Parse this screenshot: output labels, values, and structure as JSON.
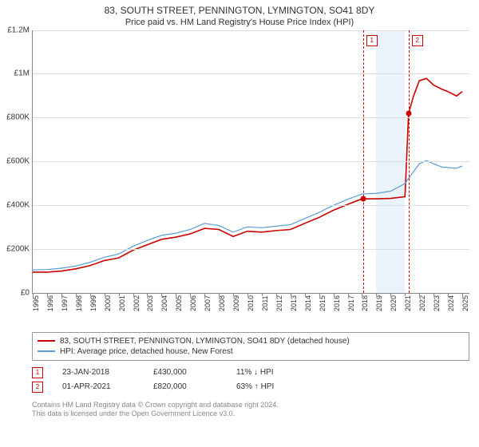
{
  "title_line1": "83, SOUTH STREET, PENNINGTON, LYMINGTON, SO41 8DY",
  "title_line2": "Price paid vs. HM Land Registry's House Price Index (HPI)",
  "chart": {
    "type": "line",
    "background_color": "#ffffff",
    "grid_color": "#dddddd",
    "axis_color": "#888888",
    "xlim": [
      1995,
      2025.5
    ],
    "ylim": [
      0,
      1200000
    ],
    "ytick_step": 200000,
    "yticks": [
      "£0",
      "£200K",
      "£400K",
      "£600K",
      "£800K",
      "£1M",
      "£1.2M"
    ],
    "xticks": [
      1995,
      1996,
      1997,
      1998,
      1999,
      2000,
      2001,
      2002,
      2003,
      2004,
      2005,
      2006,
      2007,
      2008,
      2009,
      2010,
      2011,
      2012,
      2013,
      2014,
      2015,
      2016,
      2017,
      2018,
      2019,
      2020,
      2021,
      2022,
      2023,
      2024,
      2025
    ],
    "shade_band": {
      "from": 2019.0,
      "to": 2021.0,
      "color": "#eaf2fb"
    },
    "series": [
      {
        "id": "property",
        "label": "83, SOUTH STREET, PENNINGTON, LYMINGTON, SO41 8DY (detached house)",
        "color": "#cc0000",
        "line_width": 1.6,
        "data": [
          [
            1995,
            95000
          ],
          [
            1996,
            95000
          ],
          [
            1997,
            100000
          ],
          [
            1998,
            110000
          ],
          [
            1999,
            125000
          ],
          [
            2000,
            148000
          ],
          [
            2001,
            160000
          ],
          [
            2002,
            195000
          ],
          [
            2003,
            220000
          ],
          [
            2004,
            245000
          ],
          [
            2005,
            255000
          ],
          [
            2006,
            270000
          ],
          [
            2007,
            295000
          ],
          [
            2008,
            290000
          ],
          [
            2009,
            258000
          ],
          [
            2010,
            282000
          ],
          [
            2011,
            278000
          ],
          [
            2012,
            285000
          ],
          [
            2013,
            290000
          ],
          [
            2014,
            318000
          ],
          [
            2015,
            345000
          ],
          [
            2016,
            378000
          ],
          [
            2017,
            405000
          ],
          [
            2018,
            430000
          ],
          [
            2019,
            430000
          ],
          [
            2020,
            432000
          ],
          [
            2021,
            440000
          ],
          [
            2021.25,
            820000
          ],
          [
            2021.6,
            900000
          ],
          [
            2022,
            970000
          ],
          [
            2022.5,
            980000
          ],
          [
            2023,
            950000
          ],
          [
            2023.6,
            930000
          ],
          [
            2024,
            920000
          ],
          [
            2024.6,
            900000
          ],
          [
            2025,
            920000
          ]
        ]
      },
      {
        "id": "hpi",
        "label": "HPI: Average price, detached house, New Forest",
        "color": "#5b9bd5",
        "line_width": 1.2,
        "data": [
          [
            1995,
            105000
          ],
          [
            1996,
            107000
          ],
          [
            1997,
            113000
          ],
          [
            1998,
            123000
          ],
          [
            1999,
            140000
          ],
          [
            2000,
            163000
          ],
          [
            2001,
            178000
          ],
          [
            2002,
            213000
          ],
          [
            2003,
            240000
          ],
          [
            2004,
            263000
          ],
          [
            2005,
            273000
          ],
          [
            2006,
            290000
          ],
          [
            2007,
            318000
          ],
          [
            2008,
            308000
          ],
          [
            2009,
            278000
          ],
          [
            2010,
            302000
          ],
          [
            2011,
            298000
          ],
          [
            2012,
            305000
          ],
          [
            2013,
            312000
          ],
          [
            2014,
            340000
          ],
          [
            2015,
            368000
          ],
          [
            2016,
            400000
          ],
          [
            2017,
            428000
          ],
          [
            2018,
            452000
          ],
          [
            2019,
            455000
          ],
          [
            2020,
            465000
          ],
          [
            2021,
            500000
          ],
          [
            2021.6,
            555000
          ],
          [
            2022,
            590000
          ],
          [
            2022.5,
            605000
          ],
          [
            2023,
            590000
          ],
          [
            2023.6,
            575000
          ],
          [
            2024,
            573000
          ],
          [
            2024.6,
            570000
          ],
          [
            2025,
            580000
          ]
        ]
      }
    ],
    "transaction_markers": [
      {
        "n": "1",
        "x": 2018.07,
        "y": 430000,
        "vline_color": "#cc0000"
      },
      {
        "n": "2",
        "x": 2021.25,
        "y": 820000,
        "vline_color": "#cc0000"
      }
    ]
  },
  "legend": {
    "rows": [
      {
        "color": "#cc0000",
        "label_bind": "chart.series.0.label"
      },
      {
        "color": "#5b9bd5",
        "label_bind": "chart.series.1.label"
      }
    ]
  },
  "sales": [
    {
      "n": "1",
      "date": "23-JAN-2018",
      "price": "£430,000",
      "pct": "11% ↓ HPI"
    },
    {
      "n": "2",
      "date": "01-APR-2021",
      "price": "£820,000",
      "pct": "63% ↑ HPI"
    }
  ],
  "footer_line1": "Contains HM Land Registry data © Crown copyright and database right 2024.",
  "footer_line2": "This data is licensed under the Open Government Licence v3.0."
}
